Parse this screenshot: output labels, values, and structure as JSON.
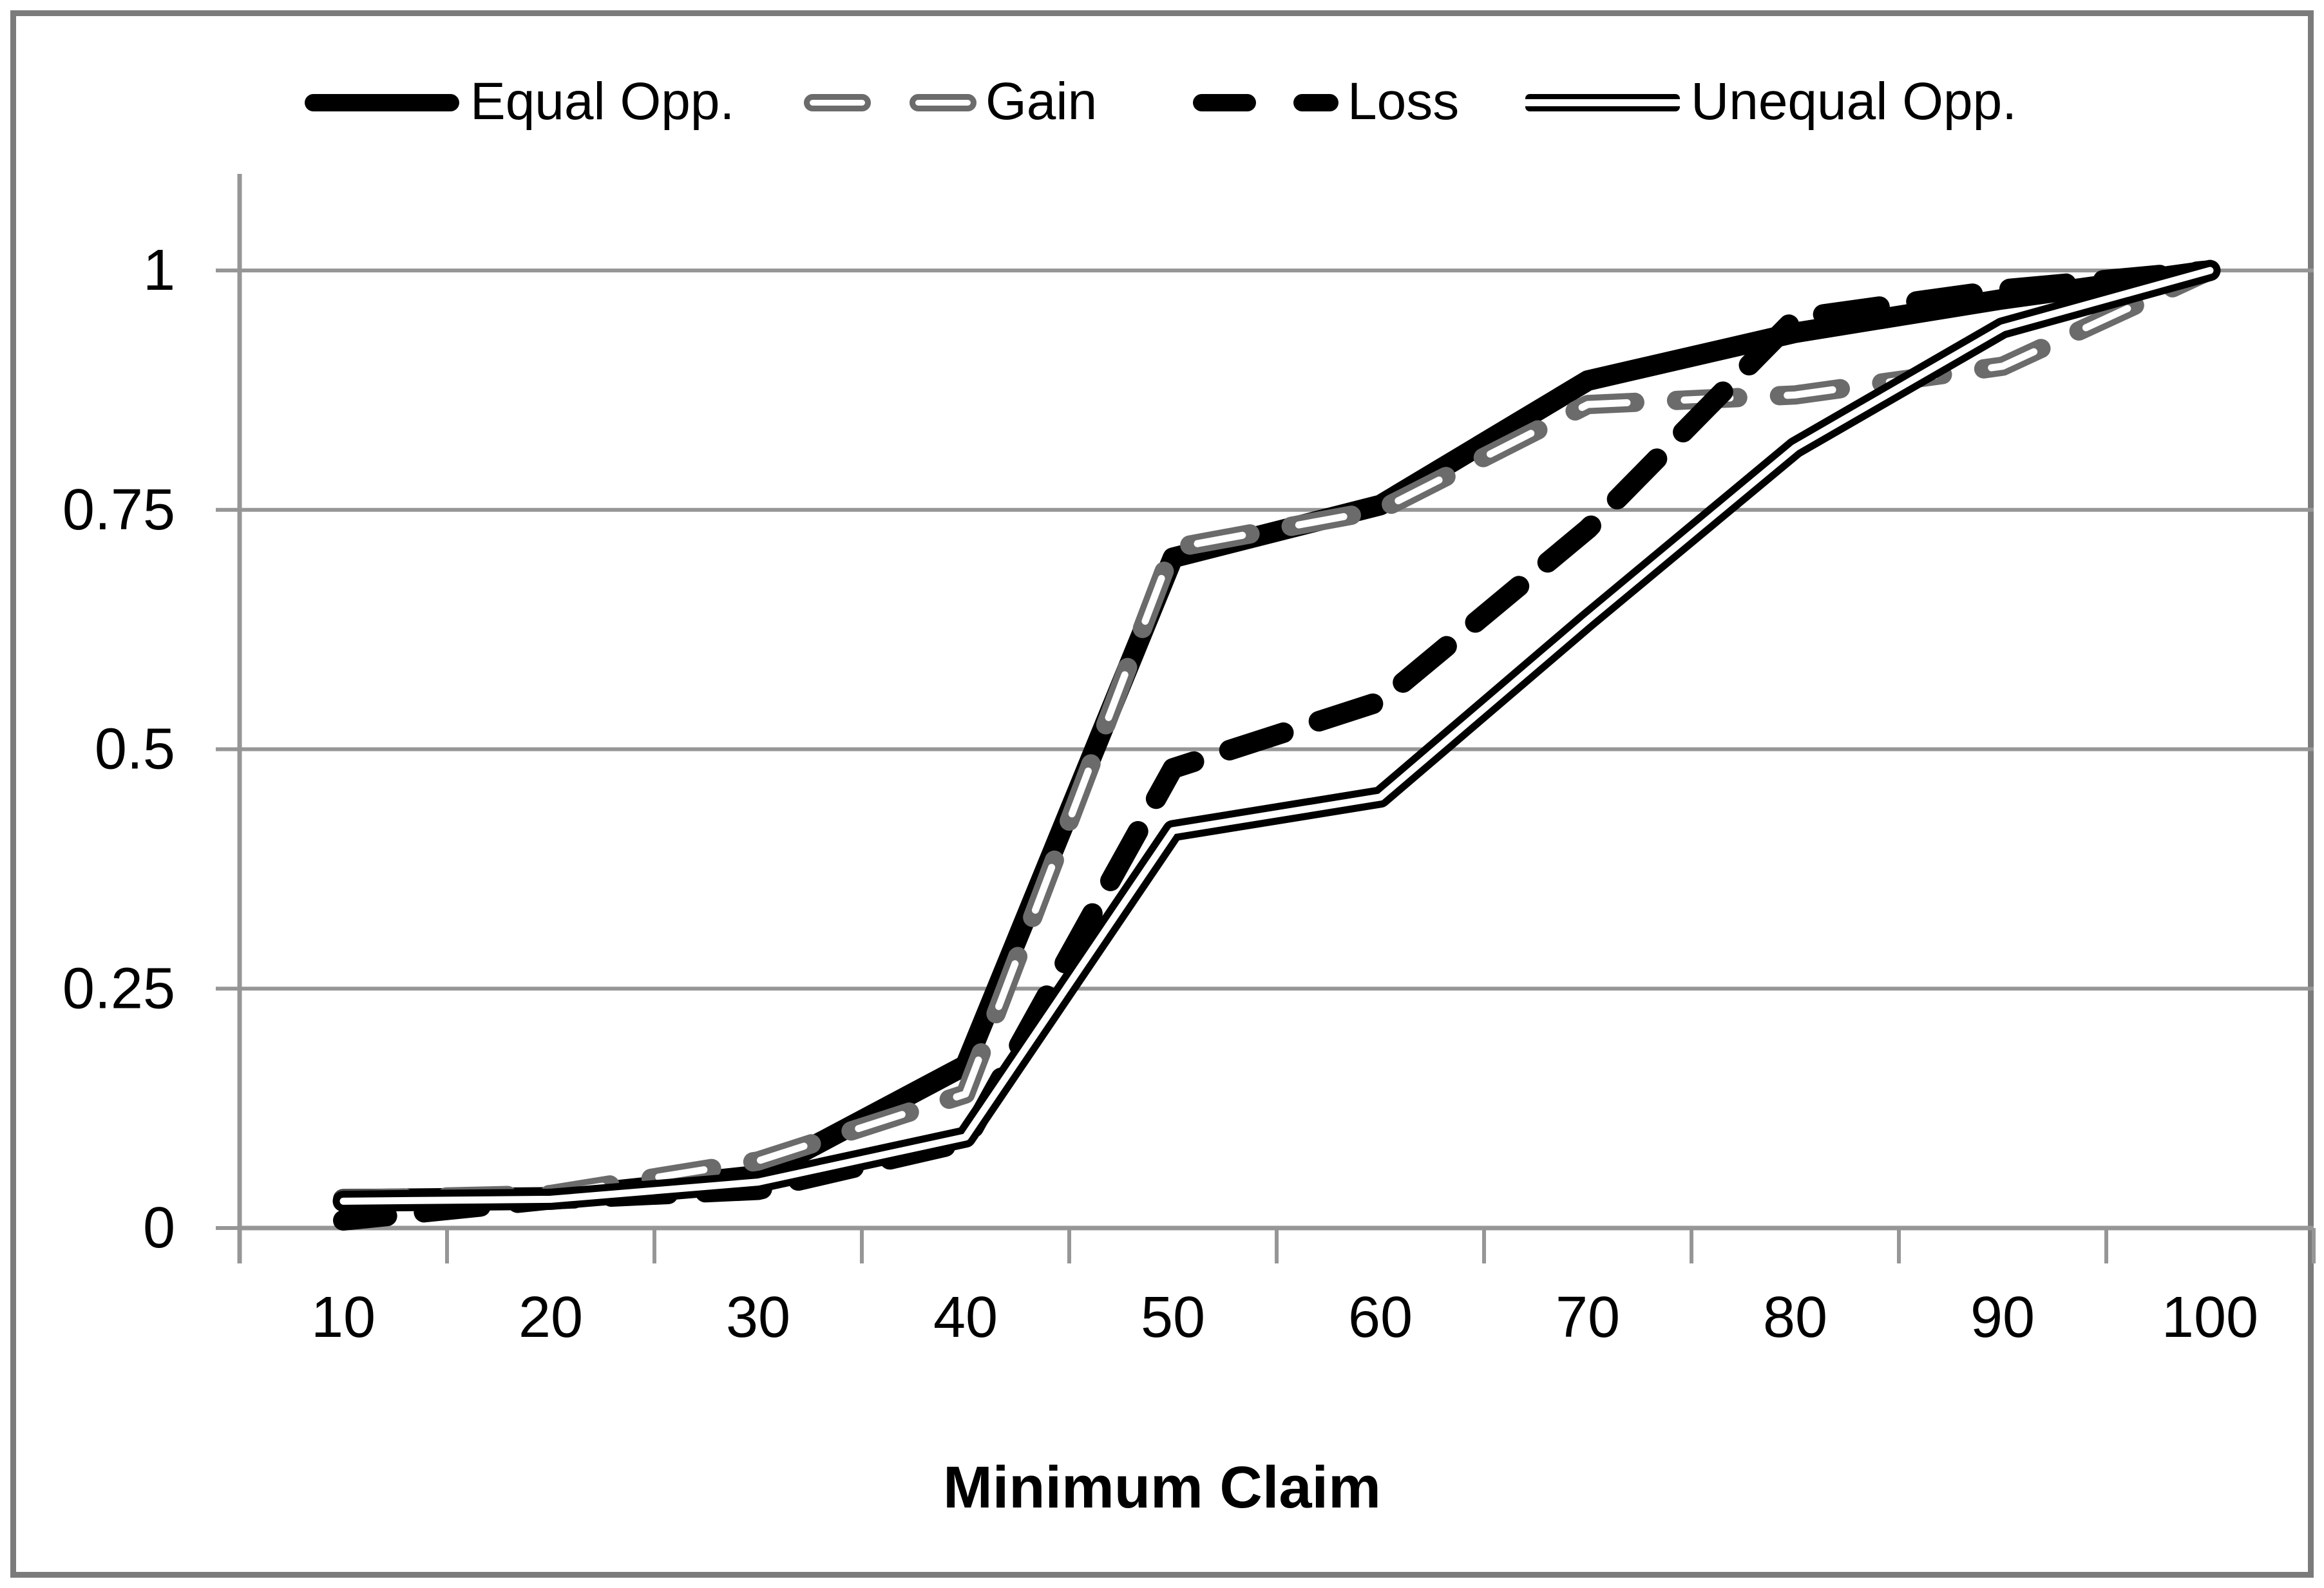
{
  "chart_data": {
    "type": "line",
    "title": "",
    "xlabel": "Minimum Claim",
    "ylabel": "",
    "categories": [
      "10",
      "20",
      "30",
      "40",
      "50",
      "60",
      "70",
      "80",
      "90",
      "100"
    ],
    "x_values": [
      10,
      20,
      30,
      40,
      50,
      60,
      70,
      80,
      90,
      100
    ],
    "y_ticks": [
      0,
      0.25,
      0.5,
      0.75,
      1
    ],
    "y_tick_labels": [
      "0",
      "0.25",
      "0.5",
      "0.75",
      "1"
    ],
    "ylim": [
      0,
      1
    ],
    "grid": "horizontal-only",
    "legend_position": "top-center",
    "series": [
      {
        "name": "Equal Opp.",
        "style": "thick-solid",
        "color": "#000000",
        "values": [
          0.03,
          0.032,
          0.055,
          0.17,
          0.7,
          0.755,
          0.885,
          0.935,
          0.97,
          1.0
        ]
      },
      {
        "name": "Gain",
        "style": "hollow-dash",
        "color": "#6b6b6b",
        "values": [
          0.03,
          0.035,
          0.07,
          0.14,
          0.71,
          0.75,
          0.86,
          0.87,
          0.9,
          1.0
        ]
      },
      {
        "name": "Loss",
        "style": "dash",
        "color": "#000000",
        "values": [
          0.008,
          0.03,
          0.04,
          0.09,
          0.48,
          0.55,
          0.73,
          0.95,
          0.98,
          1.0
        ]
      },
      {
        "name": "Unequal Opp.",
        "style": "double-line",
        "color": "#000000",
        "values": [
          0.028,
          0.03,
          0.048,
          0.095,
          0.415,
          0.45,
          0.635,
          0.815,
          0.94,
          1.0
        ]
      }
    ]
  },
  "colors": {
    "grid": "#969696",
    "axis": "#969696",
    "figure_border": "#7b7b7b",
    "gain_gray": "#6b6b6b",
    "text": "#000000"
  }
}
